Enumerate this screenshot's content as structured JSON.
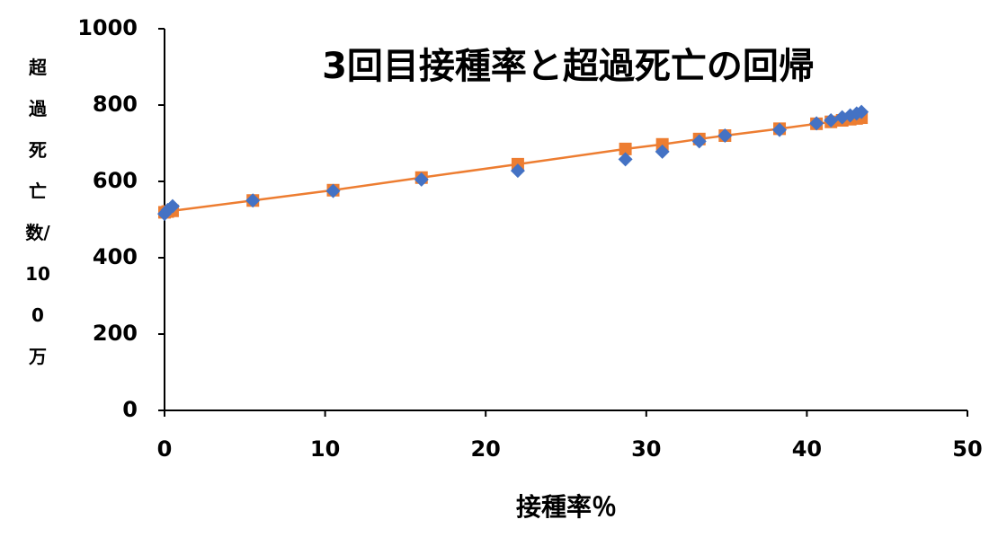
{
  "chart_data": {
    "type": "scatter",
    "title": "3回目接種率と超過死亡の回帰",
    "x_label": "接種率％",
    "y_label": "超過死亡数/100万",
    "xlim": [
      0,
      50
    ],
    "xticks": [
      0,
      10,
      20,
      30,
      40,
      50
    ],
    "ylim": [
      0,
      1000
    ],
    "yticks": [
      0,
      200,
      400,
      600,
      800,
      1000
    ],
    "grid": false,
    "x": [
      0,
      0.2,
      0.5,
      5.5,
      10.5,
      16,
      22,
      28.7,
      31,
      33.3,
      34.9,
      38.3,
      40.6,
      41.5,
      42.2,
      42.7,
      43.1,
      43.4
    ],
    "series": [
      {
        "color": "#ed7d31",
        "marker": "square",
        "line": true,
        "values": [
          519,
          521,
          523,
          550,
          577,
          610,
          645,
          685,
          697,
          711,
          720,
          738,
          751,
          756,
          760,
          763,
          765,
          767
        ]
      },
      {
        "color": "#4472c4",
        "marker": "diamond",
        "line": false,
        "values": [
          515,
          525,
          535,
          550,
          575,
          605,
          628,
          658,
          678,
          705,
          720,
          735,
          752,
          760,
          768,
          773,
          778,
          782
        ]
      }
    ]
  }
}
